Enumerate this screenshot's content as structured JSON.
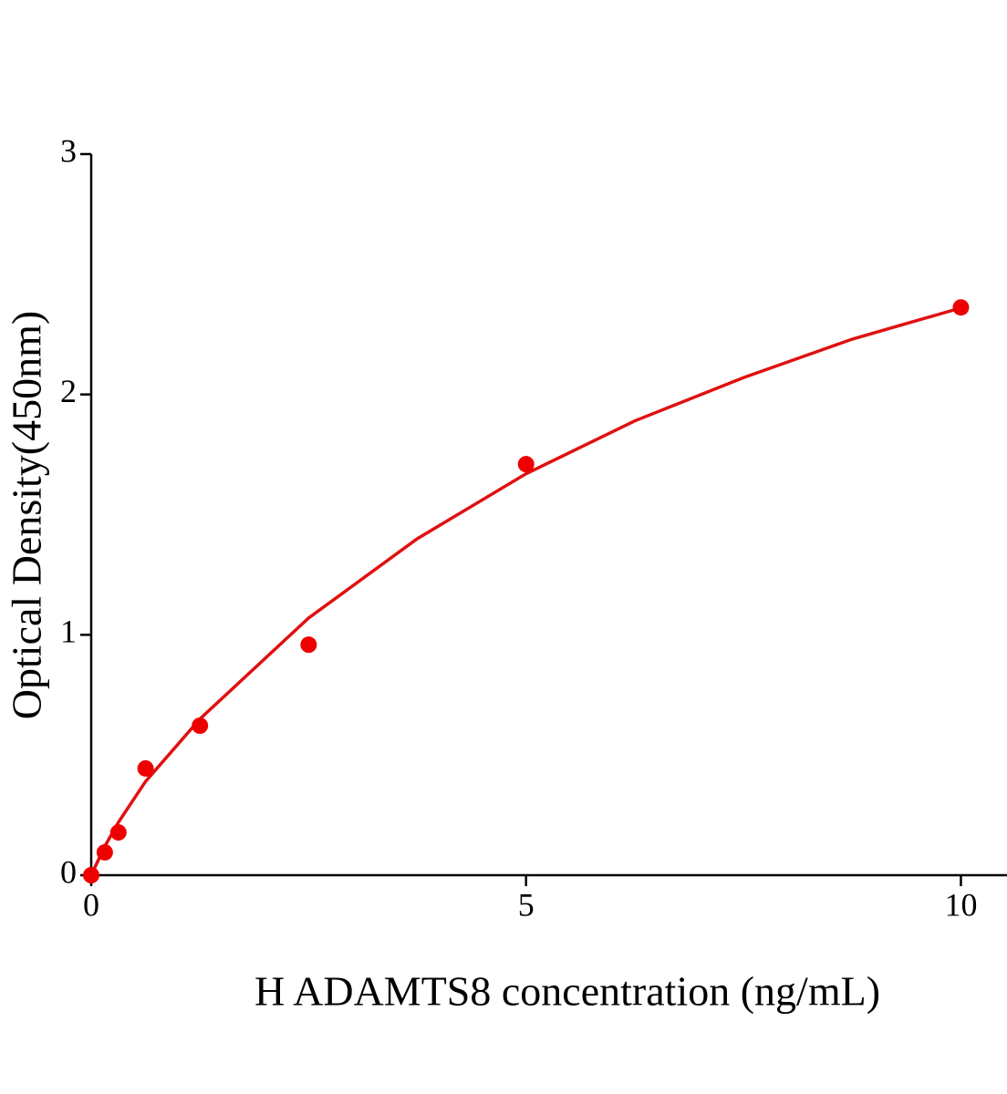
{
  "chart_data": {
    "type": "scatter",
    "x_label": "H ADAMTS8 concentration (ng/mL)",
    "y_label": "Optical Density(450nm)",
    "xlim": [
      0,
      10.53
    ],
    "ylim": [
      0,
      3
    ],
    "xticks": [
      0,
      5,
      10
    ],
    "yticks": [
      0,
      1,
      2,
      3
    ],
    "grid": false,
    "series": [
      {
        "color": "#ee0000",
        "style": "markers",
        "x": [
          0,
          0.156,
          0.3125,
          0.625,
          1.25,
          2.5,
          5,
          10
        ],
        "values": [
          0,
          0.095,
          0.178,
          0.444,
          0.622,
          0.959,
          1.71,
          2.362
        ]
      },
      {
        "color": "#e01010",
        "style": "line",
        "x": [
          0,
          0.156,
          0.3125,
          0.625,
          1.25,
          2.5,
          3.75,
          5,
          6.25,
          7.5,
          8.75,
          10
        ],
        "values": [
          0,
          0.12,
          0.22,
          0.39,
          0.65,
          1.07,
          1.4,
          1.67,
          1.89,
          2.07,
          2.23,
          2.36
        ]
      }
    ]
  }
}
